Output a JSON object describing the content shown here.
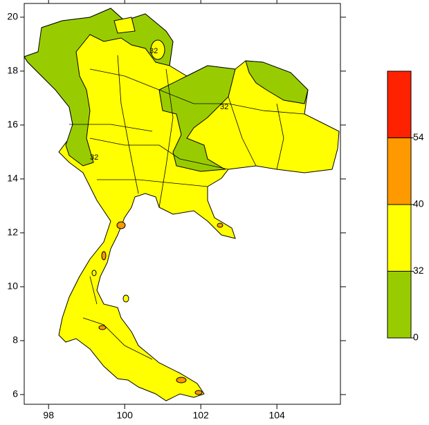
{
  "map": {
    "xlim": [
      97.36,
      105.67
    ],
    "ylim": [
      5.64,
      20.51
    ],
    "xticks": [
      98,
      100,
      102,
      104
    ],
    "yticks": [
      6,
      8,
      10,
      12,
      14,
      16,
      18,
      20
    ],
    "contour_labels": [
      "32",
      "32",
      "32"
    ],
    "colorbar": {
      "levels": [
        0,
        32,
        40,
        54
      ],
      "colors": [
        "#99cc00",
        "#ffff00",
        "#ff9900",
        "#ff2200"
      ]
    }
  }
}
